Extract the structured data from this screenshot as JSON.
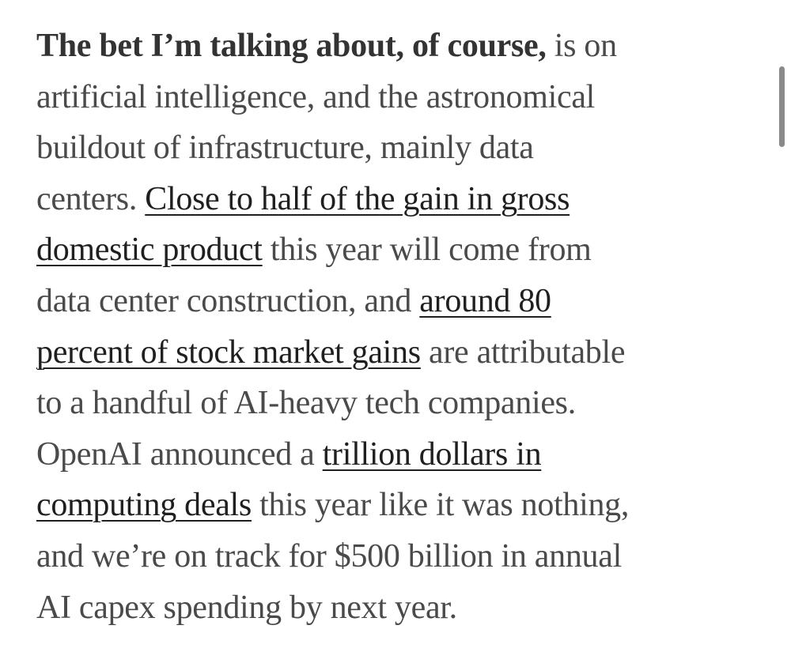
{
  "paragraph": {
    "lines": [
      [
        {
          "text": "The bet I’m talking about, of course,",
          "style": "bold"
        },
        {
          "text": " is on",
          "style": "plain"
        }
      ],
      [
        {
          "text": "artificial intelligence, and the astronomical",
          "style": "plain"
        }
      ],
      [
        {
          "text": "buildout of infrastructure, mainly data",
          "style": "plain"
        }
      ],
      [
        {
          "text": "centers. ",
          "style": "plain"
        },
        {
          "text": "Close to half of the gain in gross",
          "style": "link"
        }
      ],
      [
        {
          "text": "domestic product",
          "style": "link"
        },
        {
          "text": " this year will come from",
          "style": "plain"
        }
      ],
      [
        {
          "text": "data center construction, and ",
          "style": "plain"
        },
        {
          "text": "around 80",
          "style": "link"
        }
      ],
      [
        {
          "text": "percent of stock market gains",
          "style": "link"
        },
        {
          "text": " are attributable",
          "style": "plain"
        }
      ],
      [
        {
          "text": "to a handful of AI-heavy tech companies.",
          "style": "plain"
        }
      ],
      [
        {
          "text": "OpenAI announced a ",
          "style": "plain"
        },
        {
          "text": "trillion dollars in",
          "style": "link"
        }
      ],
      [
        {
          "text": "computing deals",
          "style": "link"
        },
        {
          "text": " this year like it was nothing,",
          "style": "plain"
        }
      ],
      [
        {
          "text": "and we’re on track for $500 billion in annual",
          "style": "plain"
        }
      ],
      [
        {
          "text": "AI capex spending by next year.",
          "style": "plain"
        }
      ]
    ]
  },
  "colors": {
    "text": "#4a4a4a",
    "bold": "#333333",
    "link": "#1f1f1f",
    "scrollbar": "#8a8a8a"
  }
}
